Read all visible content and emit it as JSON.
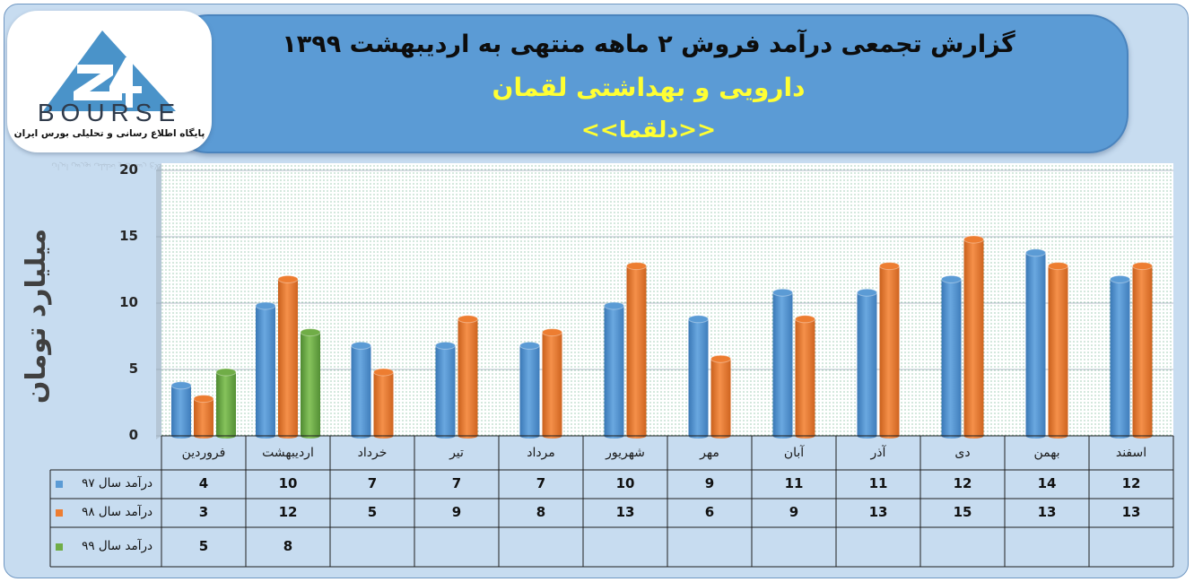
{
  "header": {
    "title_line1": "گزارش تجمعی درآمد فروش ۲ ماهه منتهی به اردیبهشت ۱۳۹۹",
    "title_line2": "دارویی و بهداشتی لقمان",
    "title_line3": "<<دلقما>>"
  },
  "logo": {
    "wordmark": "BOURSE",
    "tagline": "پایگاه اطلاع رسانی و تحلیلی بورس ایران"
  },
  "colors": {
    "series_97": "#5b9bd5",
    "series_98": "#ed7d31",
    "series_99": "#70ad47",
    "banner": "#5b9bd5",
    "title_accent": "#ffff33"
  },
  "chart_data": {
    "type": "bar",
    "title": "",
    "ylabel": "میلیارد تومان",
    "xlabel": "",
    "ylim": [
      0,
      20
    ],
    "yticks": [
      0,
      5,
      10,
      15,
      20
    ],
    "categories": [
      "فروردین",
      "اردیبهشت",
      "خرداد",
      "تیر",
      "مرداد",
      "شهریور",
      "مهر",
      "آبان",
      "آذر",
      "دی",
      "بهمن",
      "اسفند"
    ],
    "series": [
      {
        "name": "درآمد سال ۹۷",
        "values": [
          4,
          10,
          7,
          7,
          7,
          10,
          9,
          11,
          11,
          12,
          14,
          12
        ]
      },
      {
        "name": "درآمد سال ۹۸",
        "values": [
          3,
          12,
          5,
          9,
          8,
          13,
          6,
          9,
          13,
          15,
          13,
          13
        ]
      },
      {
        "name": "درآمد سال ۹۹",
        "values": [
          5,
          8,
          null,
          null,
          null,
          null,
          null,
          null,
          null,
          null,
          null,
          null
        ]
      }
    ],
    "legend": "data-table",
    "grid": false
  }
}
